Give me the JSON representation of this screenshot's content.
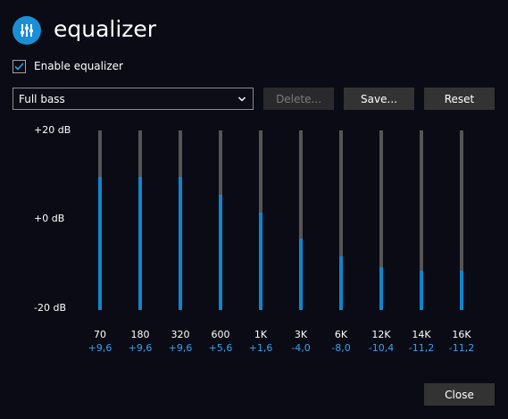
{
  "header": {
    "title": "equalizer",
    "icon": "equalizer-sliders-icon",
    "accent_color": "#1a8fd6"
  },
  "enable_equalizer": {
    "label": "Enable equalizer",
    "checked": true
  },
  "preset": {
    "selected": "Full bass"
  },
  "toolbar": {
    "delete_label": "Delete...",
    "delete_enabled": false,
    "save_label": "Save...",
    "reset_label": "Reset"
  },
  "scale": {
    "top": "+20 dB",
    "middle": "+0 dB",
    "bottom": "-20 dB",
    "max_db": 20,
    "min_db": -20
  },
  "bands": [
    {
      "freq": "70",
      "gain_label": "+9,6",
      "gain": 9.6
    },
    {
      "freq": "180",
      "gain_label": "+9,6",
      "gain": 9.6
    },
    {
      "freq": "320",
      "gain_label": "+9,6",
      "gain": 9.6
    },
    {
      "freq": "600",
      "gain_label": "+5,6",
      "gain": 5.6
    },
    {
      "freq": "1K",
      "gain_label": "+1,6",
      "gain": 1.6
    },
    {
      "freq": "3K",
      "gain_label": "-4,0",
      "gain": -4.0
    },
    {
      "freq": "6K",
      "gain_label": "-8,0",
      "gain": -8.0
    },
    {
      "freq": "12K",
      "gain_label": "-10,4",
      "gain": -10.4
    },
    {
      "freq": "14K",
      "gain_label": "-11,2",
      "gain": -11.2
    },
    {
      "freq": "16K",
      "gain_label": "-11,2",
      "gain": -11.2
    }
  ],
  "footer": {
    "close_label": "Close"
  },
  "colors": {
    "background": "#0b0b16",
    "slider_track": "#555555",
    "slider_fill": "#0f86cc",
    "gain_text": "#3aa0e4"
  }
}
